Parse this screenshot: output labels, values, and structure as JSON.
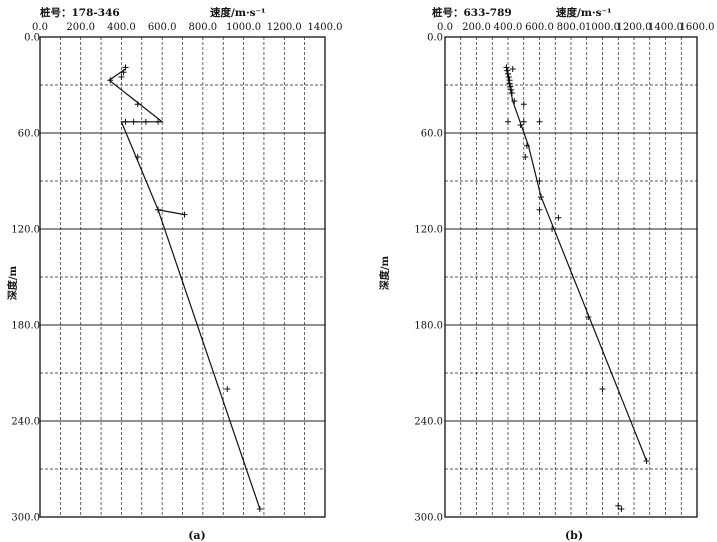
{
  "chart_data": [
    {
      "type": "scatter",
      "title": "",
      "pile_label": "桩号：178-346",
      "xlabel": "速度/m·s⁻¹",
      "ylabel": "深度/m",
      "caption": "(a)",
      "xlim": [
        0,
        1400
      ],
      "ylim": [
        0,
        300
      ],
      "y_inverted": true,
      "x_tick_labels": [
        "0.0",
        "200.0",
        "400.0",
        "600.0",
        "800.0",
        "1000.0",
        "1200.0",
        "1400.0"
      ],
      "y_tick_labels": [
        "0.0",
        "60.0",
        "120.0",
        "180.0",
        "240.0",
        "300.0"
      ],
      "grid": true,
      "points": [
        {
          "x": 420,
          "y": 19
        },
        {
          "x": 410,
          "y": 22
        },
        {
          "x": 400,
          "y": 25
        },
        {
          "x": 345,
          "y": 27
        },
        {
          "x": 480,
          "y": 42
        },
        {
          "x": 420,
          "y": 53
        },
        {
          "x": 460,
          "y": 53
        },
        {
          "x": 520,
          "y": 53
        },
        {
          "x": 580,
          "y": 53
        },
        {
          "x": 480,
          "y": 75
        },
        {
          "x": 580,
          "y": 108
        },
        {
          "x": 710,
          "y": 111
        },
        {
          "x": 920,
          "y": 220
        },
        {
          "x": 1080,
          "y": 295
        }
      ],
      "line": [
        {
          "x": 420,
          "y": 20
        },
        {
          "x": 340,
          "y": 27
        },
        {
          "x": 600,
          "y": 53
        },
        {
          "x": 400,
          "y": 53
        },
        {
          "x": 580,
          "y": 108
        },
        {
          "x": 710,
          "y": 111
        },
        {
          "x": 580,
          "y": 108
        },
        {
          "x": 1080,
          "y": 295
        }
      ]
    },
    {
      "type": "scatter",
      "title": "",
      "pile_label": "桩号：633-789",
      "xlabel": "速度/m·s⁻¹",
      "ylabel": "深度/m",
      "caption": "(b)",
      "xlim": [
        0,
        1600
      ],
      "ylim": [
        0,
        300
      ],
      "y_inverted": true,
      "x_tick_labels": [
        "0.0",
        "200.0",
        "400.0",
        "600.0",
        "800.0",
        "1000.0",
        "1200.0",
        "1400.0",
        "1600.0"
      ],
      "y_tick_labels": [
        "0.0",
        "60.0",
        "120.0",
        "180.0",
        "240.0",
        "300.0"
      ],
      "grid": true,
      "points": [
        {
          "x": 390,
          "y": 19
        },
        {
          "x": 395,
          "y": 21
        },
        {
          "x": 400,
          "y": 23
        },
        {
          "x": 405,
          "y": 25
        },
        {
          "x": 410,
          "y": 27
        },
        {
          "x": 410,
          "y": 29
        },
        {
          "x": 415,
          "y": 31
        },
        {
          "x": 420,
          "y": 33
        },
        {
          "x": 425,
          "y": 35
        },
        {
          "x": 430,
          "y": 20
        },
        {
          "x": 440,
          "y": 40
        },
        {
          "x": 500,
          "y": 42
        },
        {
          "x": 400,
          "y": 53
        },
        {
          "x": 480,
          "y": 55
        },
        {
          "x": 500,
          "y": 53
        },
        {
          "x": 600,
          "y": 53
        },
        {
          "x": 520,
          "y": 68
        },
        {
          "x": 510,
          "y": 75
        },
        {
          "x": 600,
          "y": 90
        },
        {
          "x": 610,
          "y": 100
        },
        {
          "x": 600,
          "y": 108
        },
        {
          "x": 720,
          "y": 113
        },
        {
          "x": 680,
          "y": 120
        },
        {
          "x": 910,
          "y": 175
        },
        {
          "x": 1000,
          "y": 220
        },
        {
          "x": 1100,
          "y": 293
        },
        {
          "x": 1120,
          "y": 295
        },
        {
          "x": 1280,
          "y": 265
        }
      ],
      "line": [
        {
          "x": 390,
          "y": 20
        },
        {
          "x": 430,
          "y": 40
        },
        {
          "x": 530,
          "y": 68
        },
        {
          "x": 610,
          "y": 100
        },
        {
          "x": 700,
          "y": 122
        },
        {
          "x": 1280,
          "y": 265
        }
      ]
    }
  ]
}
